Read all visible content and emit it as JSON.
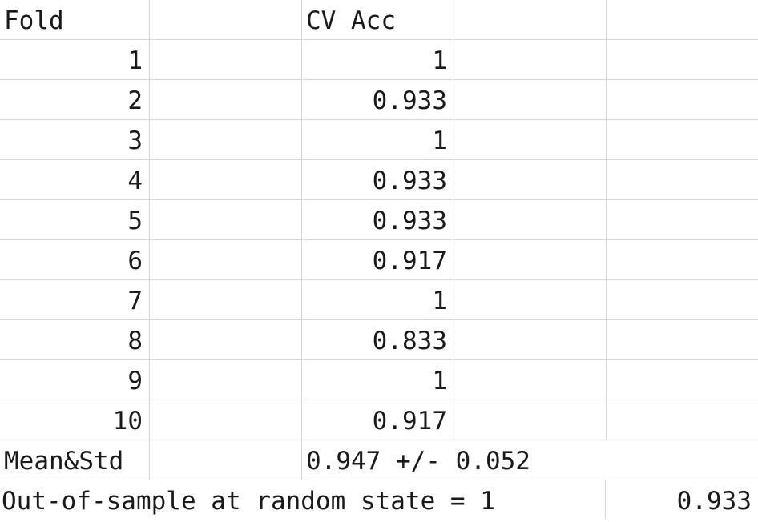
{
  "sheet": {
    "header": {
      "fold_label": "Fold",
      "cv_label": "CV Acc"
    },
    "rows": [
      {
        "fold": "1",
        "acc": "1"
      },
      {
        "fold": "2",
        "acc": "0.933"
      },
      {
        "fold": "3",
        "acc": "1"
      },
      {
        "fold": "4",
        "acc": "0.933"
      },
      {
        "fold": "5",
        "acc": "0.933"
      },
      {
        "fold": "6",
        "acc": "0.917"
      },
      {
        "fold": "7",
        "acc": "1"
      },
      {
        "fold": "8",
        "acc": "0.833"
      },
      {
        "fold": "9",
        "acc": "1"
      },
      {
        "fold": "10",
        "acc": "0.917"
      }
    ],
    "summary": {
      "label": "Mean&Std",
      "value": "0.947 +/- 0.052"
    },
    "oos": {
      "label": "Out-of-sample at random state = 1",
      "value": "0.933"
    }
  }
}
